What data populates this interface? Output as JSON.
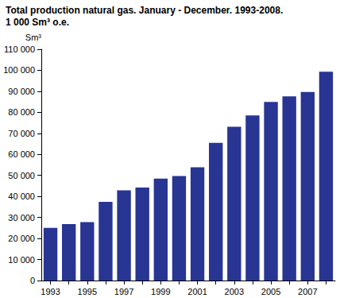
{
  "chart_data": {
    "type": "bar",
    "title": "Total production natural gas. January - December. 1993-2008.",
    "subtitle": "1 000 Sm³ o.e.",
    "ylabel": "Sm³",
    "categories": [
      "1993",
      null,
      "1995",
      null,
      "1997",
      null,
      "1999",
      null,
      "2001",
      null,
      "2003",
      null,
      "2005",
      null,
      "2007",
      null
    ],
    "values": [
      25000,
      26800,
      27800,
      37400,
      42900,
      44200,
      48500,
      49700,
      53900,
      65500,
      73100,
      78500,
      85000,
      87600,
      89700,
      99300
    ],
    "color": "#283593",
    "ylim": [
      0,
      110000
    ],
    "yticks": [
      0,
      {
        "value": 10000,
        "label": "10 000"
      },
      {
        "value": 20000,
        "label": "20 000"
      },
      {
        "value": 30000,
        "label": "30 000"
      },
      {
        "value": 40000,
        "label": "40 000"
      },
      {
        "value": 50000,
        "label": "50 000"
      },
      {
        "value": 60000,
        "label": "60 000"
      },
      {
        "value": 70000,
        "label": "70 000"
      },
      {
        "value": 80000,
        "label": "80 000"
      },
      {
        "value": 90000,
        "label": "90 000"
      },
      {
        "value": 100000,
        "label": "100 000"
      },
      {
        "value": 110000,
        "label": "110 000"
      }
    ],
    "grid": false
  }
}
